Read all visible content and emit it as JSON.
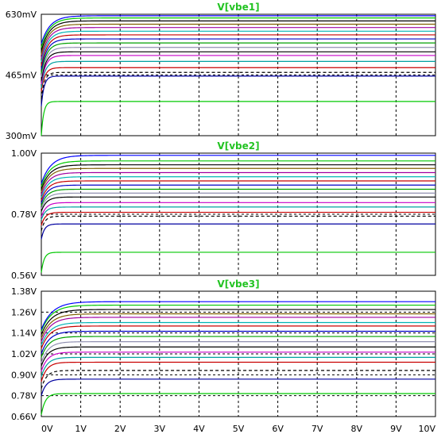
{
  "colors": {
    "background": "#ffffff",
    "frame": "#000000",
    "grid": "#000000",
    "title": "#22c322"
  },
  "chart_data": [
    {
      "type": "line",
      "title": "V[vbe1]",
      "xlim": [
        0,
        10
      ],
      "ylim": [
        0.3,
        0.63
      ],
      "x_ticks": [
        "0V",
        "1V",
        "2V",
        "3V",
        "4V",
        "5V",
        "6V",
        "7V",
        "8V",
        "9V",
        "10V"
      ],
      "y_ticks": [
        {
          "label": "630mV",
          "value": 0.63
        },
        {
          "label": "465mV",
          "value": 0.465
        },
        {
          "label": "300mV",
          "value": 0.3
        }
      ],
      "grid": true,
      "series": [
        {
          "color": "#00c800",
          "start": 0.3,
          "final": 0.393,
          "tau": 0.06,
          "dashed": false
        },
        {
          "color": "#0000a0",
          "start": 0.38,
          "final": 0.462,
          "tau": 0.07,
          "dashed": false
        },
        {
          "color": "#000000",
          "start": 0.4,
          "final": 0.472,
          "tau": 0.08,
          "dashed": true
        },
        {
          "color": "#c80000",
          "start": 0.42,
          "final": 0.485,
          "tau": 0.09,
          "dashed": false
        },
        {
          "color": "#00a0a0",
          "start": 0.43,
          "final": 0.502,
          "tau": 0.1,
          "dashed": false
        },
        {
          "color": "#c800c8",
          "start": 0.44,
          "final": 0.518,
          "tau": 0.11,
          "dashed": false
        },
        {
          "color": "#000000",
          "start": 0.45,
          "final": 0.528,
          "tau": 0.12,
          "dashed": false
        },
        {
          "color": "#9090b0",
          "start": 0.46,
          "final": 0.54,
          "tau": 0.13,
          "dashed": false
        },
        {
          "color": "#00a000",
          "start": 0.47,
          "final": 0.552,
          "tau": 0.14,
          "dashed": false
        },
        {
          "color": "#0000c8",
          "start": 0.48,
          "final": 0.563,
          "tau": 0.15,
          "dashed": false
        },
        {
          "color": "#c80000",
          "start": 0.49,
          "final": 0.574,
          "tau": 0.16,
          "dashed": false
        },
        {
          "color": "#00b4b4",
          "start": 0.5,
          "final": 0.584,
          "tau": 0.17,
          "dashed": false
        },
        {
          "color": "#a000a0",
          "start": 0.51,
          "final": 0.594,
          "tau": 0.18,
          "dashed": false
        },
        {
          "color": "#806000",
          "start": 0.52,
          "final": 0.603,
          "tau": 0.19,
          "dashed": false
        },
        {
          "color": "#000000",
          "start": 0.53,
          "final": 0.612,
          "tau": 0.2,
          "dashed": false
        },
        {
          "color": "#00c800",
          "start": 0.54,
          "final": 0.62,
          "tau": 0.21,
          "dashed": false
        },
        {
          "color": "#0000ff",
          "start": 0.55,
          "final": 0.626,
          "tau": 0.22,
          "dashed": false
        }
      ]
    },
    {
      "type": "line",
      "title": "V[vbe2]",
      "xlim": [
        0,
        10
      ],
      "ylim": [
        0.56,
        1.0
      ],
      "x_ticks": [
        "0V",
        "1V",
        "2V",
        "3V",
        "4V",
        "5V",
        "6V",
        "7V",
        "8V",
        "9V",
        "10V"
      ],
      "y_ticks": [
        {
          "label": "1.00V",
          "value": 1.0
        },
        {
          "label": "0.78V",
          "value": 0.78
        },
        {
          "label": "0.56V",
          "value": 0.56
        }
      ],
      "grid": true,
      "series": [
        {
          "color": "#00c800",
          "start": 0.57,
          "final": 0.643,
          "tau": 0.07,
          "dashed": false
        },
        {
          "color": "#0000a0",
          "start": 0.69,
          "final": 0.745,
          "tau": 0.08,
          "dashed": false
        },
        {
          "color": "#000000",
          "start": 0.72,
          "final": 0.773,
          "tau": 0.09,
          "dashed": true
        },
        {
          "color": "#c80000",
          "start": 0.74,
          "final": 0.787,
          "tau": 0.1,
          "dashed": false
        },
        {
          "color": "#00a0a0",
          "start": 0.76,
          "final": 0.806,
          "tau": 0.11,
          "dashed": false
        },
        {
          "color": "#c800c8",
          "start": 0.77,
          "final": 0.822,
          "tau": 0.12,
          "dashed": false
        },
        {
          "color": "#000000",
          "start": 0.79,
          "final": 0.842,
          "tau": 0.13,
          "dashed": false
        },
        {
          "color": "#9090b0",
          "start": 0.8,
          "final": 0.856,
          "tau": 0.14,
          "dashed": false
        },
        {
          "color": "#00a000",
          "start": 0.81,
          "final": 0.87,
          "tau": 0.15,
          "dashed": false
        },
        {
          "color": "#0000c8",
          "start": 0.82,
          "final": 0.885,
          "tau": 0.16,
          "dashed": false
        },
        {
          "color": "#c80000",
          "start": 0.83,
          "final": 0.9,
          "tau": 0.17,
          "dashed": false
        },
        {
          "color": "#00b4b4",
          "start": 0.84,
          "final": 0.915,
          "tau": 0.18,
          "dashed": false
        },
        {
          "color": "#a000a0",
          "start": 0.85,
          "final": 0.93,
          "tau": 0.19,
          "dashed": false
        },
        {
          "color": "#806000",
          "start": 0.86,
          "final": 0.945,
          "tau": 0.2,
          "dashed": false
        },
        {
          "color": "#000000",
          "start": 0.87,
          "final": 0.958,
          "tau": 0.21,
          "dashed": false
        },
        {
          "color": "#00c800",
          "start": 0.88,
          "final": 0.972,
          "tau": 0.22,
          "dashed": false
        },
        {
          "color": "#0000ff",
          "start": 0.89,
          "final": 0.992,
          "tau": 0.24,
          "dashed": false
        }
      ]
    },
    {
      "type": "line",
      "title": "V[vbe3]",
      "xlim": [
        0,
        10
      ],
      "ylim": [
        0.66,
        1.38
      ],
      "x_ticks": [
        "0V",
        "1V",
        "2V",
        "3V",
        "4V",
        "5V",
        "6V",
        "7V",
        "8V",
        "9V",
        "10V"
      ],
      "y_ticks": [
        {
          "label": "1.38V",
          "value": 1.38
        },
        {
          "label": "1.26V",
          "value": 1.26
        },
        {
          "label": "1.14V",
          "value": 1.14
        },
        {
          "label": "1.02V",
          "value": 1.02
        },
        {
          "label": "0.90V",
          "value": 0.9
        },
        {
          "label": "0.78V",
          "value": 0.78
        },
        {
          "label": "0.66V",
          "value": 0.66
        }
      ],
      "grid": true,
      "series": [
        {
          "color": "#00c800",
          "start": 0.67,
          "final": 0.792,
          "tau": 0.1,
          "dashed": false
        },
        {
          "color": "#0000a0",
          "start": 0.78,
          "final": 0.875,
          "tau": 0.12,
          "dashed": false
        },
        {
          "color": "#000000",
          "start": 0.82,
          "final": 0.925,
          "tau": 0.13,
          "dashed": true
        },
        {
          "color": "#c80000",
          "start": 0.86,
          "final": 0.972,
          "tau": 0.14,
          "dashed": false
        },
        {
          "color": "#00a0a0",
          "start": 0.89,
          "final": 1.0,
          "tau": 0.15,
          "dashed": false
        },
        {
          "color": "#c800c8",
          "start": 0.92,
          "final": 1.03,
          "tau": 0.16,
          "dashed": false
        },
        {
          "color": "#000000",
          "start": 0.95,
          "final": 1.06,
          "tau": 0.17,
          "dashed": false
        },
        {
          "color": "#9090b0",
          "start": 0.97,
          "final": 1.09,
          "tau": 0.18,
          "dashed": false
        },
        {
          "color": "#00a000",
          "start": 1.0,
          "final": 1.12,
          "tau": 0.19,
          "dashed": false
        },
        {
          "color": "#0000c8",
          "start": 1.02,
          "final": 1.15,
          "tau": 0.2,
          "dashed": false
        },
        {
          "color": "#c80000",
          "start": 1.05,
          "final": 1.18,
          "tau": 0.21,
          "dashed": false
        },
        {
          "color": "#00b4b4",
          "start": 1.07,
          "final": 1.2,
          "tau": 0.22,
          "dashed": false
        },
        {
          "color": "#a000a0",
          "start": 1.09,
          "final": 1.23,
          "tau": 0.23,
          "dashed": false
        },
        {
          "color": "#806000",
          "start": 1.11,
          "final": 1.25,
          "tau": 0.24,
          "dashed": false
        },
        {
          "color": "#000000",
          "start": 1.13,
          "final": 1.275,
          "tau": 0.25,
          "dashed": false
        },
        {
          "color": "#00c800",
          "start": 1.15,
          "final": 1.3,
          "tau": 0.26,
          "dashed": false
        },
        {
          "color": "#0000ff",
          "start": 1.16,
          "final": 1.32,
          "tau": 0.28,
          "dashed": false
        }
      ]
    }
  ]
}
